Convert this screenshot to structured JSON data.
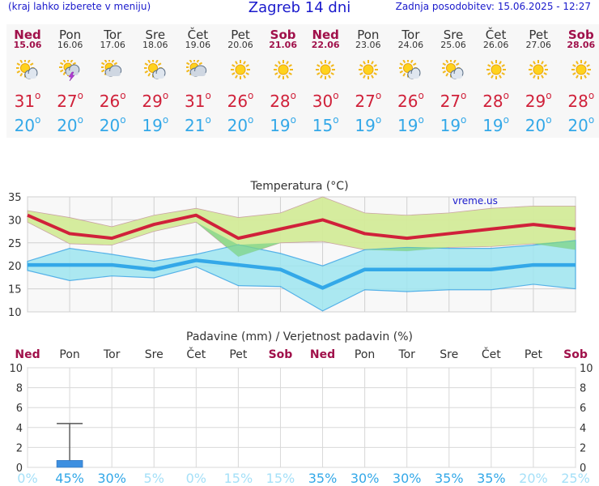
{
  "header": {
    "menu_hint": "(kraj lahko izberete v meniju)",
    "title": "Zagreb 14 dni",
    "updated": "Zadnja posodobitev: 15.06.2025 - 12:27"
  },
  "forecast": {
    "days": [
      {
        "name": "Ned",
        "date": "15.06",
        "weekend": true,
        "icon": "partly-cloudy-icon",
        "tmax": "31",
        "tmin": "20"
      },
      {
        "name": "Pon",
        "date": "16.06",
        "weekend": false,
        "icon": "thunderstorm-icon",
        "tmax": "27",
        "tmin": "20"
      },
      {
        "name": "Tor",
        "date": "17.06",
        "weekend": false,
        "icon": "mostly-cloudy-icon",
        "tmax": "26",
        "tmin": "20"
      },
      {
        "name": "Sre",
        "date": "18.06",
        "weekend": false,
        "icon": "partly-cloudy-icon",
        "tmax": "29",
        "tmin": "19"
      },
      {
        "name": "Čet",
        "date": "19.06",
        "weekend": false,
        "icon": "mostly-cloudy-icon",
        "tmax": "31",
        "tmin": "21"
      },
      {
        "name": "Pet",
        "date": "20.06",
        "weekend": false,
        "icon": "sunny-icon",
        "tmax": "26",
        "tmin": "20"
      },
      {
        "name": "Sob",
        "date": "21.06",
        "weekend": true,
        "icon": "sunny-icon",
        "tmax": "28",
        "tmin": "19"
      },
      {
        "name": "Ned",
        "date": "22.06",
        "weekend": true,
        "icon": "sunny-icon",
        "tmax": "30",
        "tmin": "15"
      },
      {
        "name": "Pon",
        "date": "23.06",
        "weekend": false,
        "icon": "sunny-icon",
        "tmax": "27",
        "tmin": "19"
      },
      {
        "name": "Tor",
        "date": "24.06",
        "weekend": false,
        "icon": "partly-cloudy-icon",
        "tmax": "26",
        "tmin": "19"
      },
      {
        "name": "Sre",
        "date": "25.06",
        "weekend": false,
        "icon": "partly-cloudy-icon",
        "tmax": "27",
        "tmin": "19"
      },
      {
        "name": "Čet",
        "date": "26.06",
        "weekend": false,
        "icon": "sunny-icon",
        "tmax": "28",
        "tmin": "19"
      },
      {
        "name": "Pet",
        "date": "27.06",
        "weekend": false,
        "icon": "sunny-icon",
        "tmax": "29",
        "tmin": "20"
      },
      {
        "name": "Sob",
        "date": "28.06",
        "weekend": true,
        "icon": "sunny-icon",
        "tmax": "28",
        "tmin": "20"
      }
    ],
    "degree_symbol": "o"
  },
  "colors": {
    "title": "#1a1acc",
    "weekend": "#a0104a",
    "tmax": "#d0213a",
    "tmin": "#33a8e8",
    "max_band": "#d4ec9a",
    "min_band": "#9ee6f0",
    "overlap": "#7fd48a",
    "precip_bar": "#3d8fe0",
    "prob_hi": "#33a8e8",
    "prob_lo": "#a5e0f8"
  },
  "chart_data": [
    {
      "type": "line",
      "title": "Temperatura (°C)",
      "watermark": "vreme.us",
      "categories": [
        "Ned",
        "Pon",
        "Tor",
        "Sre",
        "Čet",
        "Pet",
        "Sob",
        "Ned",
        "Pon",
        "Tor",
        "Sre",
        "Čet",
        "Pet",
        "Sob"
      ],
      "ylim": [
        10,
        35
      ],
      "yticks": [
        10,
        15,
        20,
        25,
        30,
        35
      ],
      "grid": true,
      "series": [
        {
          "role": "max-mean",
          "values": [
            31,
            27,
            26,
            29,
            31,
            26,
            28,
            30,
            27,
            26,
            27,
            28,
            29,
            28
          ]
        },
        {
          "role": "max-upper",
          "values": [
            32,
            30.5,
            28.5,
            31,
            32.5,
            30.5,
            31.5,
            35,
            31.5,
            31,
            31.5,
            32.5,
            33,
            33
          ]
        },
        {
          "role": "max-lower",
          "values": [
            29.5,
            24.8,
            24.5,
            27.5,
            29.5,
            22,
            25,
            25.3,
            23.5,
            23.2,
            24,
            24.2,
            24.8,
            23.5
          ]
        },
        {
          "role": "min-mean",
          "values": [
            20.2,
            20.2,
            20.2,
            19.2,
            21.2,
            20.2,
            19.2,
            15.2,
            19.2,
            19.2,
            19.2,
            19.2,
            20.2,
            20.2
          ]
        },
        {
          "role": "min-upper",
          "values": [
            21,
            23.8,
            22.5,
            21,
            22.5,
            24.6,
            22.7,
            20,
            23.5,
            24,
            23.8,
            23.8,
            24.5,
            25.5
          ]
        },
        {
          "role": "min-lower",
          "values": [
            19,
            16.8,
            17.8,
            17.4,
            19.8,
            15.7,
            15.5,
            10.2,
            14.8,
            14.4,
            14.8,
            14.8,
            16,
            15
          ]
        }
      ]
    },
    {
      "type": "bar",
      "title": "Padavine (mm) / Verjetnost padavin (%)",
      "categories": [
        "Ned",
        "Pon",
        "Tor",
        "Sre",
        "Čet",
        "Pet",
        "Sob",
        "Ned",
        "Pon",
        "Tor",
        "Sre",
        "Čet",
        "Pet",
        "Sob"
      ],
      "values": [
        0,
        0.7,
        0,
        0,
        0,
        0,
        0,
        0,
        0,
        0,
        0,
        0,
        0,
        0
      ],
      "error_max": [
        0,
        4.4,
        0,
        0,
        0,
        0,
        0,
        0,
        0,
        0,
        0,
        0,
        0,
        0
      ],
      "ylim": [
        0,
        10
      ],
      "yticks": [
        0,
        2,
        4,
        6,
        8,
        10
      ],
      "probability": [
        "0%",
        "45%",
        "30%",
        "5%",
        "0%",
        "15%",
        "15%",
        "35%",
        "30%",
        "30%",
        "35%",
        "35%",
        "20%",
        "25%"
      ],
      "probability_values": [
        0,
        45,
        30,
        5,
        0,
        15,
        15,
        35,
        30,
        30,
        35,
        35,
        20,
        25
      ]
    }
  ]
}
